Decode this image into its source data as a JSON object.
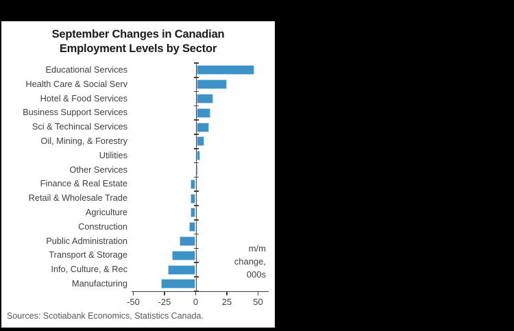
{
  "frame": {
    "background_color": "#000000",
    "panel_color": "#ffffff"
  },
  "chart_data": {
    "type": "bar",
    "orientation": "horizontal",
    "title": "September Changes in Canadian Employment Levels by Sector",
    "title_lines": [
      "September Changes in Canadian",
      "Employment Levels by Sector"
    ],
    "categories": [
      "Educational Services",
      "Health Care & Social Serv",
      "Hotel & Food Services",
      "Business Support Services",
      "Sci & Techincal Services",
      "Oil, Mining, & Forestry",
      "Utilities",
      "Other Services",
      "Finance & Real Estate",
      "Retail & Wholesale Trade",
      "Agriculture",
      "Construction",
      "Public Administration",
      "Transport & Storage",
      "Info, Culture, & Rec",
      "Manufacturing"
    ],
    "values": [
      46,
      24,
      13,
      11,
      10,
      6,
      3,
      1,
      -4,
      -4,
      -4,
      -5,
      -13,
      -19,
      -22,
      -28
    ],
    "x_ticks": [
      "-50",
      "-25",
      "0",
      "25",
      "50"
    ],
    "x_tick_values": [
      -50,
      -25,
      0,
      25,
      50
    ],
    "xlim": [
      -50,
      50
    ],
    "unit_annotation_lines": [
      "m/m",
      "change,",
      "000s"
    ],
    "grid": false,
    "legend": false,
    "bar_color": "#3d93c7",
    "bar_border_color": "#b3d7ee",
    "axis_color": "#404040",
    "label_color": "#3f3f3f",
    "title_color": "#1a1a1a"
  },
  "footer": {
    "sources": "Sources: Scotiabank Economics, Statistics Canada."
  }
}
